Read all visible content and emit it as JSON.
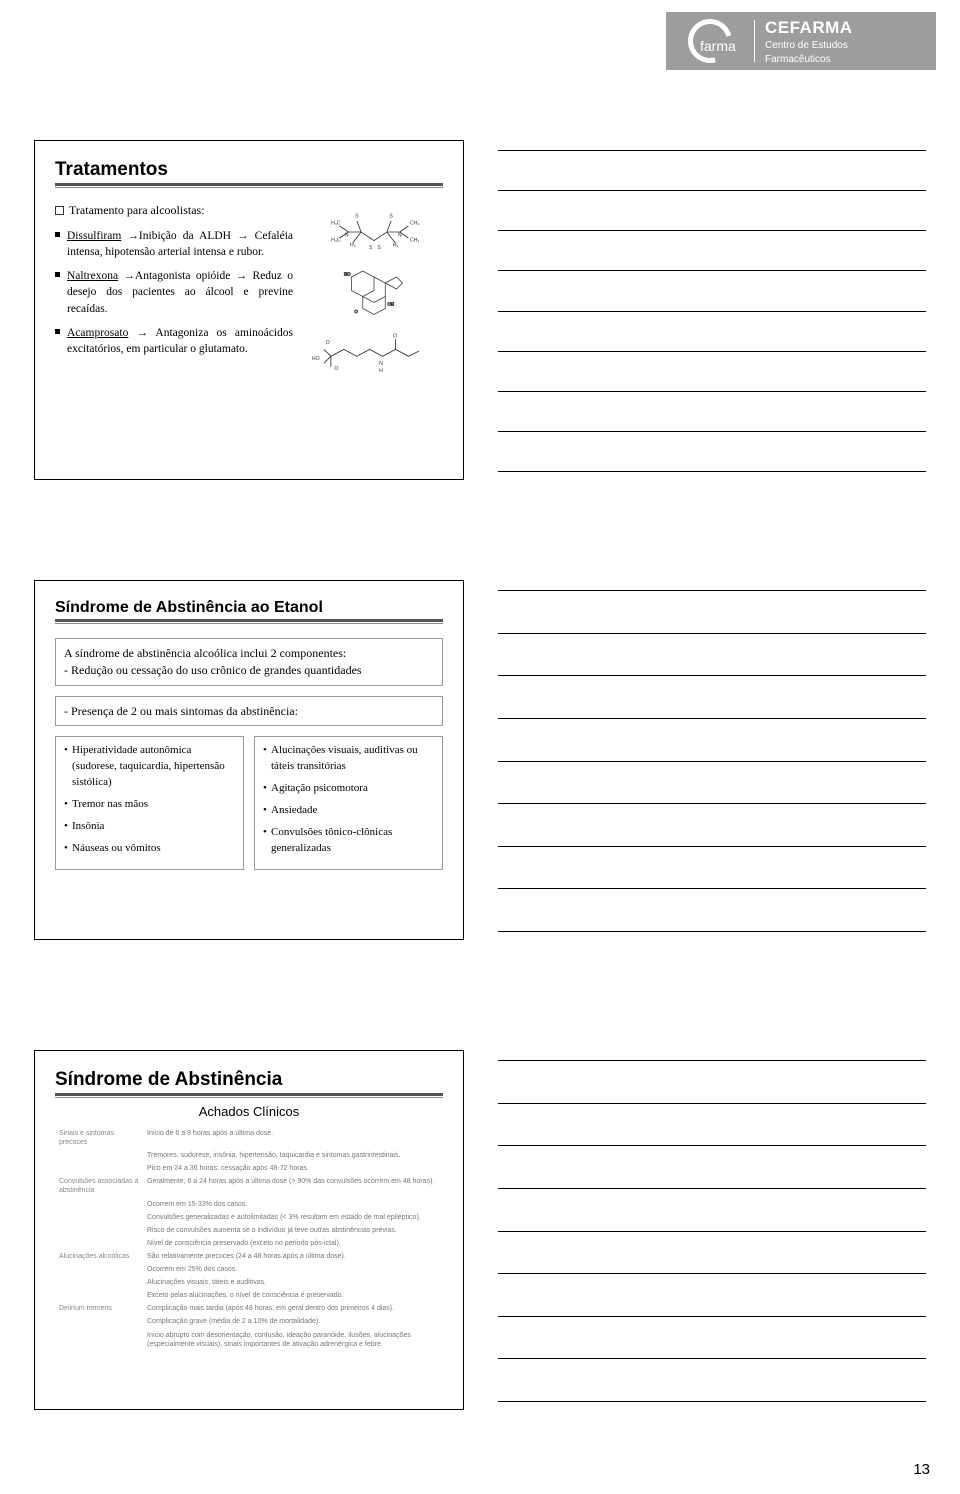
{
  "logo": {
    "brand_small": "farma",
    "brand_big": "CEFARMA",
    "brand_sub1": "Centro de Estudos",
    "brand_sub2": "Farmacêuticos"
  },
  "page_number": "13",
  "slide1": {
    "title": "Tratamentos",
    "intro": "Tratamento para alcoolistas:",
    "items": [
      {
        "lead": "Dissulfiram",
        "rest": " →Inibição da ALDH → Cefaléia intensa, hipotensão arterial intensa e rubor."
      },
      {
        "lead": "Naltrexona",
        "rest": " →Antagonista opióide → Reduz o desejo dos pacientes ao álcool e previne recaídas."
      },
      {
        "lead": "Acamprosato",
        "rest": " → Antagoniza os aminoácidos excitatórios, em particular o glutamato."
      }
    ]
  },
  "slide2": {
    "title": "Síndrome de Abstinência ao Etanol",
    "box1": "A síndrome de abstinência alcoólica inclui 2 componentes:\n- Redução ou cessação do uso crônico de grandes quantidades",
    "box2": "- Presença de 2 ou mais sintomas da abstinência:",
    "left_items": [
      "Hiperatividade autonômica (sudorese, taquicardia, hipertensão sistólica)",
      "Tremor nas mãos",
      "Insônia",
      "Náuseas ou vômitos"
    ],
    "right_items": [
      "Alucinações visuais, auditivas ou táteis transitórias",
      "Agitação psicomotora",
      "Ansiedade",
      "Convulsões tônico-clônicas generalizadas"
    ]
  },
  "slide3": {
    "title": "Síndrome de Abstinência",
    "subtitle": "Achados Clínicos",
    "rows": [
      {
        "h": "Sinais e sintomas precoces",
        "lines": [
          "Início de 6 a 8 horas após a última dose.",
          "Tremores, sudorese, insônia, hipertensão, taquicardia e sintomas gastrintestinais.",
          "Pico em 24 a 36 horas; cessação após 48-72 horas."
        ]
      },
      {
        "h": "Convulsões associadas à abstinência",
        "lines": [
          "Geralmente, 6 a 24 horas após a última dose (> 90% das convulsões ocorrem em 48 horas).",
          "Ocorrem em 15-33% dos casos.",
          "Convulsões generalizadas e autolimitadas (< 3% resultam em estado de mal epiléptico).",
          "Risco de convulsões aumenta se o indivíduo já teve outras abstinências prévias.",
          "Nível de consciência preservado (exceto no período pós-ictal)."
        ]
      },
      {
        "h": "Alucinações alcoólicas",
        "lines": [
          "São relativamente precoces (24 a 48 horas após a última dose).",
          "Ocorrem em 25% dos casos.",
          "Alucinações visuais, táteis e auditivas.",
          "Exceto pelas alucinações, o nível de consciência é preservado."
        ]
      },
      {
        "h": "Delirium tremens",
        "lines": [
          "Complicação mais tardia (após 48 horas, em geral dentro dos primeiros 4 dias).",
          "Complicação grave (média de 2 a 10% de mortalidade).",
          "Início abrupto com desorientação, confusão, ideação paranóide, ilusões, alucinações (especialmente visuais), sinais importantes de ativação adrenérgica e febre."
        ]
      }
    ]
  }
}
